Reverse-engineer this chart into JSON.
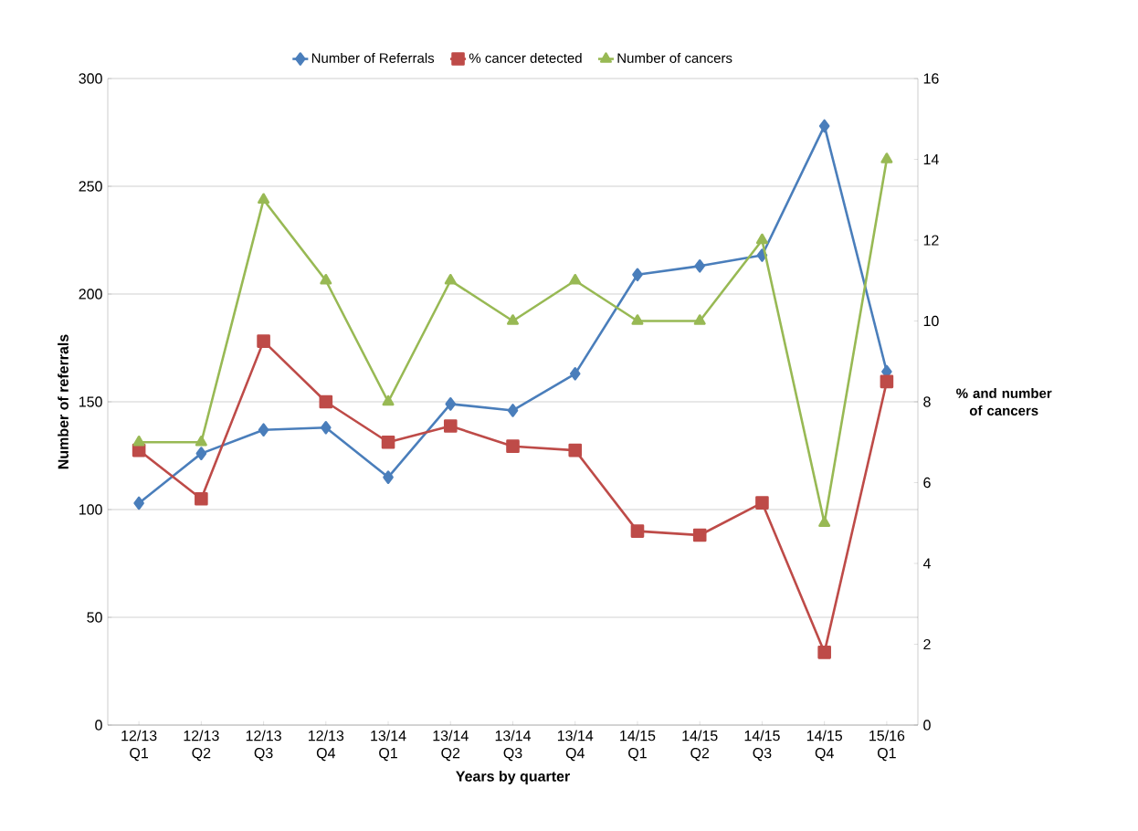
{
  "chart_data": {
    "type": "line",
    "categories": [
      "12/13 Q1",
      "12/13 Q2",
      "12/13 Q3",
      "12/13 Q4",
      "13/14 Q1",
      "13/14 Q2",
      "13/14 Q3",
      "13/14 Q4",
      "14/15 Q1",
      "14/15 Q2",
      "14/15 Q3",
      "14/15 Q4",
      "15/16 Q1"
    ],
    "series": [
      {
        "name": "Number of Referrals",
        "color": "#4a7ebb",
        "marker": "diamond",
        "values": [
          103,
          126,
          137,
          138,
          115,
          149,
          146,
          163,
          209,
          213,
          218,
          278,
          164
        ]
      },
      {
        "name": "% cancer detected",
        "color": "#be4b48",
        "marker": "square",
        "axis": "y2",
        "values": [
          6.8,
          5.6,
          9.5,
          8.0,
          7.0,
          7.4,
          6.9,
          6.8,
          4.8,
          4.7,
          5.5,
          1.8,
          8.5
        ]
      },
      {
        "name": "Number of cancers",
        "color": "#98b954",
        "marker": "triangle",
        "axis": "y2",
        "values": [
          7,
          7,
          13,
          11,
          8,
          11,
          10,
          11,
          10,
          10,
          12,
          5,
          14
        ]
      }
    ],
    "xlabel": "Years by quarter",
    "ylabel": "Number of referrals",
    "y2label": "% and number of cancers",
    "ylim": [
      0,
      300
    ],
    "yticks": [
      0,
      50,
      100,
      150,
      200,
      250,
      300
    ],
    "y2lim": [
      0,
      16
    ],
    "y2ticks": [
      0,
      2,
      4,
      6,
      8,
      10,
      12,
      14,
      16
    ],
    "grid": "y",
    "legend": "top"
  }
}
